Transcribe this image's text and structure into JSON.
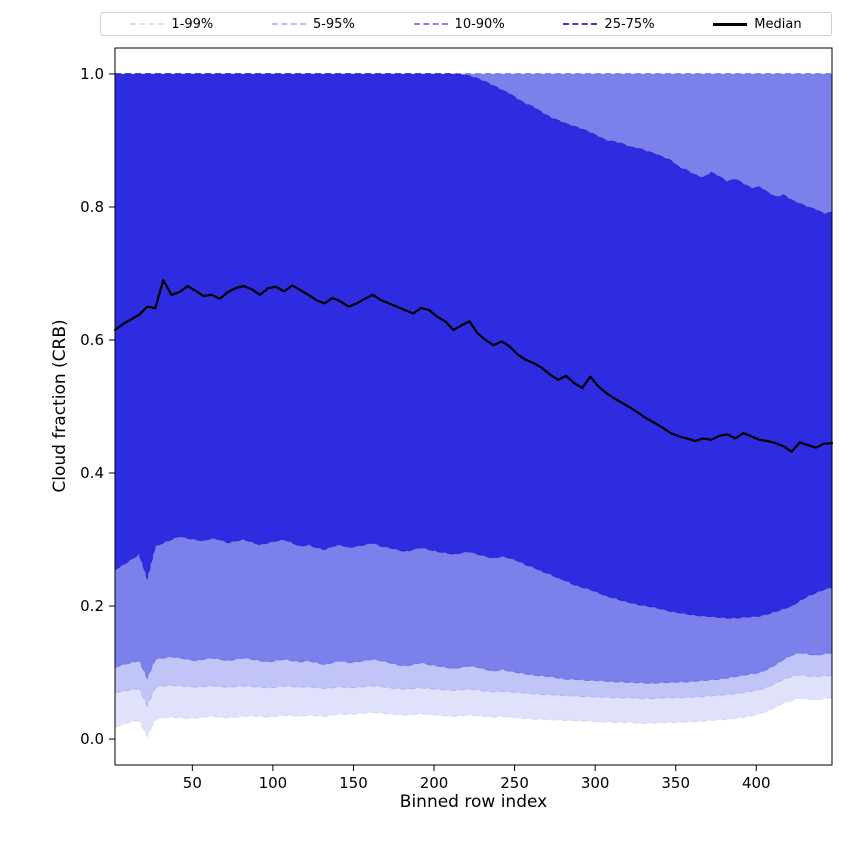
{
  "legend": {
    "entries": [
      {
        "label": "1-99%",
        "color": "#dcdff9",
        "style": "dashed"
      },
      {
        "label": "5-95%",
        "color": "#b7bcf4",
        "style": "dashed"
      },
      {
        "label": "10-90%",
        "color": "#8186ec",
        "style": "dashed"
      },
      {
        "label": "25-75%",
        "color": "#3d39dd",
        "style": "dashed"
      },
      {
        "label": "Median",
        "color": "#000000",
        "style": "solid"
      }
    ]
  },
  "chart_data": {
    "type": "area",
    "title": "",
    "xlabel": "Binned row index",
    "ylabel": "Cloud fraction (CRB)",
    "xlim": [
      2,
      447
    ],
    "ylim": [
      -0.039,
      1.039
    ],
    "x_ticks": [
      50,
      100,
      150,
      200,
      250,
      300,
      350,
      400
    ],
    "y_ticks": [
      0.0,
      0.2,
      0.4,
      0.6,
      0.8,
      1.0
    ],
    "grid": false,
    "legend_position": "top",
    "x_rule": {
      "start": 2,
      "step": 5,
      "count": 90
    },
    "median_color": "#000000",
    "median_width": 2.2,
    "bands": [
      {
        "name": "1-99%",
        "lower": "p1",
        "upper": "p99",
        "fill": "#e0e2fb",
        "edge": "#d7daf8"
      },
      {
        "name": "5-95%",
        "lower": "p5",
        "upper": "p95",
        "fill": "#c0c4f6",
        "edge": "#b2b7f2"
      },
      {
        "name": "10-90%",
        "lower": "p10",
        "upper": "p90",
        "fill": "#7b80eb",
        "edge": "#6f74e8"
      },
      {
        "name": "25-75%",
        "lower": "p25",
        "upper": "p75",
        "fill": "#2d2ce1",
        "edge": "#2a28cf"
      }
    ],
    "series": [
      {
        "name": "p1",
        "values": [
          0.018,
          0.022,
          0.026,
          0.028,
          0.004,
          0.03,
          0.032,
          0.033,
          0.032,
          0.031,
          0.032,
          0.033,
          0.034,
          0.033,
          0.032,
          0.033,
          0.034,
          0.035,
          0.034,
          0.033,
          0.034,
          0.036,
          0.035,
          0.034,
          0.036,
          0.035,
          0.034,
          0.036,
          0.038,
          0.037,
          0.038,
          0.039,
          0.04,
          0.039,
          0.038,
          0.037,
          0.036,
          0.037,
          0.038,
          0.037,
          0.036,
          0.035,
          0.034,
          0.035,
          0.036,
          0.035,
          0.034,
          0.033,
          0.034,
          0.033,
          0.032,
          0.031,
          0.03,
          0.03,
          0.029,
          0.029,
          0.028,
          0.028,
          0.027,
          0.027,
          0.026,
          0.026,
          0.025,
          0.025,
          0.025,
          0.024,
          0.024,
          0.024,
          0.025,
          0.025,
          0.025,
          0.026,
          0.026,
          0.027,
          0.028,
          0.029,
          0.03,
          0.031,
          0.033,
          0.035,
          0.038,
          0.042,
          0.048,
          0.054,
          0.058,
          0.062,
          0.06,
          0.059,
          0.061,
          0.062
        ]
      },
      {
        "name": "p5",
        "values": [
          0.07,
          0.072,
          0.074,
          0.076,
          0.05,
          0.078,
          0.08,
          0.081,
          0.08,
          0.079,
          0.078,
          0.079,
          0.08,
          0.079,
          0.078,
          0.079,
          0.08,
          0.079,
          0.078,
          0.077,
          0.078,
          0.08,
          0.079,
          0.078,
          0.079,
          0.077,
          0.076,
          0.077,
          0.079,
          0.077,
          0.078,
          0.079,
          0.08,
          0.079,
          0.077,
          0.076,
          0.075,
          0.076,
          0.077,
          0.076,
          0.075,
          0.074,
          0.073,
          0.074,
          0.075,
          0.074,
          0.072,
          0.071,
          0.072,
          0.071,
          0.07,
          0.069,
          0.068,
          0.067,
          0.067,
          0.066,
          0.065,
          0.065,
          0.064,
          0.064,
          0.063,
          0.063,
          0.062,
          0.062,
          0.062,
          0.061,
          0.061,
          0.061,
          0.062,
          0.062,
          0.062,
          0.063,
          0.063,
          0.064,
          0.065,
          0.066,
          0.067,
          0.068,
          0.07,
          0.072,
          0.074,
          0.078,
          0.084,
          0.09,
          0.094,
          0.097,
          0.095,
          0.094,
          0.095,
          0.096
        ]
      },
      {
        "name": "p10",
        "values": [
          0.108,
          0.112,
          0.115,
          0.118,
          0.092,
          0.12,
          0.122,
          0.124,
          0.122,
          0.12,
          0.118,
          0.12,
          0.122,
          0.12,
          0.118,
          0.12,
          0.122,
          0.12,
          0.118,
          0.116,
          0.118,
          0.12,
          0.118,
          0.116,
          0.118,
          0.115,
          0.112,
          0.115,
          0.118,
          0.115,
          0.116,
          0.118,
          0.12,
          0.118,
          0.115,
          0.112,
          0.11,
          0.112,
          0.115,
          0.112,
          0.11,
          0.108,
          0.106,
          0.108,
          0.11,
          0.108,
          0.105,
          0.102,
          0.105,
          0.102,
          0.1,
          0.098,
          0.096,
          0.095,
          0.094,
          0.092,
          0.09,
          0.09,
          0.089,
          0.088,
          0.088,
          0.087,
          0.086,
          0.086,
          0.085,
          0.085,
          0.084,
          0.084,
          0.085,
          0.085,
          0.086,
          0.086,
          0.087,
          0.088,
          0.089,
          0.09,
          0.092,
          0.094,
          0.096,
          0.098,
          0.1,
          0.105,
          0.112,
          0.12,
          0.126,
          0.13,
          0.128,
          0.126,
          0.128,
          0.13
        ]
      },
      {
        "name": "p25",
        "values": [
          0.255,
          0.262,
          0.27,
          0.278,
          0.242,
          0.29,
          0.295,
          0.3,
          0.305,
          0.302,
          0.3,
          0.298,
          0.302,
          0.3,
          0.295,
          0.298,
          0.3,
          0.296,
          0.292,
          0.295,
          0.298,
          0.3,
          0.295,
          0.29,
          0.292,
          0.288,
          0.285,
          0.29,
          0.292,
          0.288,
          0.29,
          0.292,
          0.295,
          0.29,
          0.288,
          0.285,
          0.282,
          0.285,
          0.288,
          0.285,
          0.282,
          0.28,
          0.278,
          0.28,
          0.282,
          0.278,
          0.275,
          0.272,
          0.275,
          0.272,
          0.268,
          0.262,
          0.258,
          0.252,
          0.248,
          0.242,
          0.238,
          0.232,
          0.228,
          0.225,
          0.22,
          0.215,
          0.212,
          0.208,
          0.205,
          0.202,
          0.2,
          0.198,
          0.195,
          0.192,
          0.19,
          0.188,
          0.186,
          0.185,
          0.184,
          0.183,
          0.182,
          0.182,
          0.183,
          0.184,
          0.185,
          0.188,
          0.192,
          0.196,
          0.2,
          0.208,
          0.215,
          0.22,
          0.225,
          0.228
        ]
      },
      {
        "name": "p75",
        "values": [
          1,
          1,
          1,
          1,
          1,
          1,
          1,
          1,
          1,
          1,
          1,
          1,
          1,
          1,
          1,
          1,
          1,
          1,
          1,
          1,
          1,
          1,
          1,
          1,
          1,
          1,
          1,
          1,
          1,
          1,
          1,
          1,
          1,
          1,
          1,
          1,
          1,
          1,
          1,
          1,
          1,
          1,
          1,
          0.999,
          0.997,
          0.993,
          0.988,
          0.982,
          0.976,
          0.97,
          0.962,
          0.955,
          0.95,
          0.942,
          0.935,
          0.93,
          0.925,
          0.921,
          0.917,
          0.912,
          0.906,
          0.9,
          0.898,
          0.895,
          0.89,
          0.888,
          0.884,
          0.88,
          0.875,
          0.87,
          0.86,
          0.855,
          0.848,
          0.844,
          0.852,
          0.846,
          0.838,
          0.842,
          0.835,
          0.828,
          0.83,
          0.822,
          0.815,
          0.818,
          0.81,
          0.805,
          0.8,
          0.796,
          0.79,
          0.792
        ]
      },
      {
        "name": "p90",
        "values": 1.0
      },
      {
        "name": "p95",
        "values": 1.0
      },
      {
        "name": "p99",
        "values": 1.0
      },
      {
        "name": "median",
        "values": [
          0.615,
          0.624,
          0.631,
          0.638,
          0.65,
          0.648,
          0.69,
          0.668,
          0.672,
          0.681,
          0.674,
          0.666,
          0.668,
          0.662,
          0.672,
          0.678,
          0.681,
          0.676,
          0.668,
          0.678,
          0.68,
          0.673,
          0.682,
          0.675,
          0.668,
          0.66,
          0.655,
          0.663,
          0.658,
          0.65,
          0.655,
          0.662,
          0.668,
          0.66,
          0.655,
          0.65,
          0.645,
          0.64,
          0.648,
          0.645,
          0.635,
          0.628,
          0.615,
          0.622,
          0.628,
          0.61,
          0.6,
          0.592,
          0.598,
          0.59,
          0.578,
          0.57,
          0.565,
          0.558,
          0.548,
          0.54,
          0.546,
          0.535,
          0.528,
          0.545,
          0.53,
          0.52,
          0.512,
          0.505,
          0.498,
          0.49,
          0.482,
          0.475,
          0.468,
          0.46,
          0.455,
          0.452,
          0.448,
          0.452,
          0.45,
          0.456,
          0.458,
          0.452,
          0.46,
          0.455,
          0.45,
          0.448,
          0.445,
          0.44,
          0.432,
          0.446,
          0.442,
          0.438,
          0.444,
          0.445
        ]
      }
    ]
  }
}
